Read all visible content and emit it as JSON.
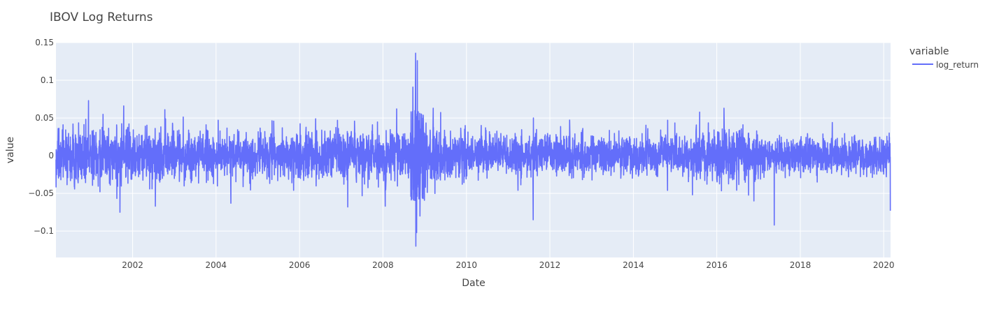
{
  "chart_data": {
    "type": "line",
    "title": "IBOV Log Returns",
    "xlabel": "Date",
    "ylabel": "value",
    "x_ticks": [
      "2002",
      "2004",
      "2006",
      "2008",
      "2010",
      "2012",
      "2014",
      "2016",
      "2018",
      "2020"
    ],
    "y_ticks": [
      "0.15",
      "0.1",
      "0.05",
      "0",
      "−0.05",
      "−0.1"
    ],
    "y_tick_values": [
      0.15,
      0.1,
      0.05,
      0,
      -0.05,
      -0.1
    ],
    "xlim": [
      "2000-03-01",
      "2020-03-01"
    ],
    "ylim": [
      -0.135,
      0.15
    ],
    "grid": true,
    "legend": {
      "title": "variable",
      "position": "right"
    },
    "series": [
      {
        "name": "log_return",
        "color": "#636efa",
        "x_start": "2000-03-01",
        "x_end": "2020-03-01",
        "volatility_regimes": [
          {
            "from": "2000-03-01",
            "to": "2002-12-31",
            "typical_abs_return": 0.018
          },
          {
            "from": "2003-01-01",
            "to": "2005-12-31",
            "typical_abs_return": 0.015
          },
          {
            "from": "2006-01-01",
            "to": "2008-08-31",
            "typical_abs_return": 0.016
          },
          {
            "from": "2008-09-01",
            "to": "2008-12-31",
            "typical_abs_return": 0.05
          },
          {
            "from": "2009-01-01",
            "to": "2009-12-31",
            "typical_abs_return": 0.02
          },
          {
            "from": "2010-01-01",
            "to": "2015-06-30",
            "typical_abs_return": 0.013
          },
          {
            "from": "2015-07-01",
            "to": "2016-12-31",
            "typical_abs_return": 0.018
          },
          {
            "from": "2017-01-01",
            "to": "2020-02-15",
            "typical_abs_return": 0.012
          }
        ],
        "notable_points": [
          {
            "x": "2000-03-20",
            "y": 0.036
          },
          {
            "x": "2000-12-10",
            "y": 0.073
          },
          {
            "x": "2001-09-12",
            "y": -0.075
          },
          {
            "x": "2001-10-15",
            "y": 0.066
          },
          {
            "x": "2002-07-20",
            "y": -0.067
          },
          {
            "x": "2002-10-10",
            "y": 0.061
          },
          {
            "x": "2004-01-20",
            "y": 0.047
          },
          {
            "x": "2004-05-10",
            "y": -0.063
          },
          {
            "x": "2006-05-22",
            "y": 0.049
          },
          {
            "x": "2007-02-27",
            "y": -0.068
          },
          {
            "x": "2007-10-01",
            "y": 0.041
          },
          {
            "x": "2008-01-21",
            "y": -0.067
          },
          {
            "x": "2008-04-30",
            "y": 0.062
          },
          {
            "x": "2008-09-19",
            "y": 0.091
          },
          {
            "x": "2008-10-13",
            "y": 0.136
          },
          {
            "x": "2008-10-15",
            "y": -0.12
          },
          {
            "x": "2008-10-28",
            "y": 0.126
          },
          {
            "x": "2008-10-22",
            "y": -0.102
          },
          {
            "x": "2008-11-20",
            "y": -0.08
          },
          {
            "x": "2009-03-15",
            "y": 0.063
          },
          {
            "x": "2009-12-20",
            "y": 0.04
          },
          {
            "x": "2011-08-08",
            "y": -0.085
          },
          {
            "x": "2011-08-10",
            "y": 0.05
          },
          {
            "x": "2014-10-27",
            "y": -0.046
          },
          {
            "x": "2014-10-28",
            "y": 0.047
          },
          {
            "x": "2016-03-04",
            "y": 0.063
          },
          {
            "x": "2017-05-18",
            "y": -0.092
          },
          {
            "x": "2018-10-08",
            "y": 0.044
          },
          {
            "x": "2020-03-01",
            "y": -0.073
          }
        ]
      }
    ]
  }
}
